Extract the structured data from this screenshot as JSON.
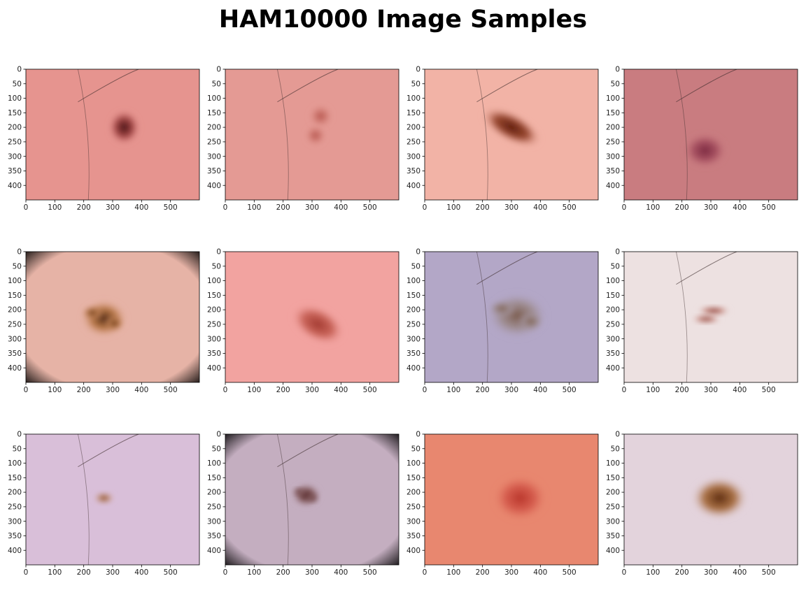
{
  "title": "HAM10000 Image Samples",
  "axes": {
    "x_ticks": [
      "0",
      "100",
      "200",
      "300",
      "400",
      "500"
    ],
    "y_ticks": [
      "0",
      "50",
      "100",
      "150",
      "200",
      "250",
      "300",
      "350",
      "400"
    ],
    "x_range": [
      0,
      600
    ],
    "y_range": [
      0,
      450
    ]
  },
  "panels": [
    {
      "skin": "#e6948f",
      "lesion": "#3f0e10",
      "halo": "#9a3a3a",
      "shape": "blob",
      "cx": 340,
      "cy": 200,
      "rx": 110,
      "ry": 120,
      "hair": true
    },
    {
      "skin": "#e49a94",
      "lesion": "#b3504a",
      "halo": "#d07b72",
      "shape": "double",
      "cx": 330,
      "cy": 200,
      "rx": 90,
      "ry": 140,
      "hair": true
    },
    {
      "skin": "#f2b3a6",
      "lesion": "#5a1a0c",
      "halo": "#8e3a20",
      "shape": "elongated",
      "cx": 300,
      "cy": 200,
      "rx": 230,
      "ry": 100,
      "hair": true
    },
    {
      "skin": "#c97c80",
      "lesion": "#7a2840",
      "halo": "#a24a5c",
      "shape": "blob",
      "cx": 280,
      "cy": 280,
      "rx": 150,
      "ry": 120,
      "hair": true
    },
    {
      "skin": "#e6b3a6",
      "lesion": "#4a2412",
      "halo": "#b6723a",
      "shape": "irregular",
      "cx": 270,
      "cy": 230,
      "rx": 160,
      "ry": 130,
      "hair": false,
      "vignette": true
    },
    {
      "skin": "#f2a3a0",
      "lesion": "#a0382f",
      "halo": "#c35a4e",
      "shape": "elongated",
      "cx": 320,
      "cy": 250,
      "rx": 200,
      "ry": 120,
      "hair": false
    },
    {
      "skin": "#b3a7c7",
      "lesion": "#7a5a4a",
      "halo": "#9c8a8a",
      "shape": "irregular",
      "cx": 320,
      "cy": 220,
      "rx": 210,
      "ry": 160,
      "hair": true
    },
    {
      "skin": "#ede1e1",
      "lesion": "#6e1208",
      "halo": "#c27a6e",
      "shape": "double",
      "cx": 310,
      "cy": 220,
      "rx": 130,
      "ry": 60,
      "hair": true
    },
    {
      "skin": "#d9bfd9",
      "lesion": "#6e2a12",
      "halo": "#c0885a",
      "shape": "blob",
      "cx": 270,
      "cy": 220,
      "rx": 70,
      "ry": 40,
      "hair": true
    },
    {
      "skin": "#c4aec0",
      "lesion": "#4a2024",
      "halo": "#7a4a48",
      "shape": "irregular",
      "cx": 280,
      "cy": 210,
      "rx": 100,
      "ry": 80,
      "hair": true,
      "vignette": true
    },
    {
      "skin": "#e8876f",
      "lesion": "#b8342a",
      "halo": "#d4584a",
      "shape": "blob",
      "cx": 330,
      "cy": 220,
      "rx": 190,
      "ry": 160,
      "hair": false
    },
    {
      "skin": "#e3d3dc",
      "lesion": "#5a2a10",
      "halo": "#a4642e",
      "shape": "blob",
      "cx": 330,
      "cy": 220,
      "rx": 200,
      "ry": 150,
      "hair": false
    }
  ]
}
